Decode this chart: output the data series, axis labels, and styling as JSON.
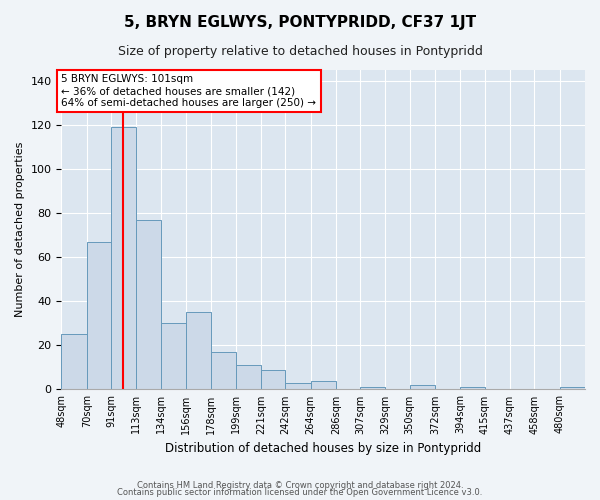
{
  "title": "5, BRYN EGLWYS, PONTYPRIDD, CF37 1JT",
  "subtitle": "Size of property relative to detached houses in Pontypridd",
  "xlabel": "Distribution of detached houses by size in Pontypridd",
  "ylabel": "Number of detached properties",
  "bar_color": "#ccd9e8",
  "bar_edge_color": "#6699bb",
  "bg_color": "#dce6f0",
  "fig_color": "#f0f4f8",
  "categories": [
    "48sqm",
    "70sqm",
    "91sqm",
    "113sqm",
    "134sqm",
    "156sqm",
    "178sqm",
    "199sqm",
    "221sqm",
    "242sqm",
    "264sqm",
    "286sqm",
    "307sqm",
    "329sqm",
    "350sqm",
    "372sqm",
    "394sqm",
    "415sqm",
    "437sqm",
    "458sqm",
    "480sqm"
  ],
  "values": [
    25,
    67,
    119,
    77,
    30,
    35,
    17,
    11,
    9,
    3,
    4,
    0,
    1,
    0,
    2,
    0,
    1,
    0,
    0,
    0,
    1
  ],
  "bin_edges": [
    48,
    70,
    91,
    113,
    134,
    156,
    178,
    199,
    221,
    242,
    264,
    286,
    307,
    329,
    350,
    372,
    394,
    415,
    437,
    458,
    480,
    502
  ],
  "vline_x": 101,
  "ylim": [
    0,
    145
  ],
  "yticks": [
    0,
    20,
    40,
    60,
    80,
    100,
    120,
    140
  ],
  "annotation_title": "5 BRYN EGLWYS: 101sqm",
  "annotation_line1": "← 36% of detached houses are smaller (142)",
  "annotation_line2": "64% of semi-detached houses are larger (250) →",
  "footer1": "Contains HM Land Registry data © Crown copyright and database right 2024.",
  "footer2": "Contains public sector information licensed under the Open Government Licence v3.0."
}
